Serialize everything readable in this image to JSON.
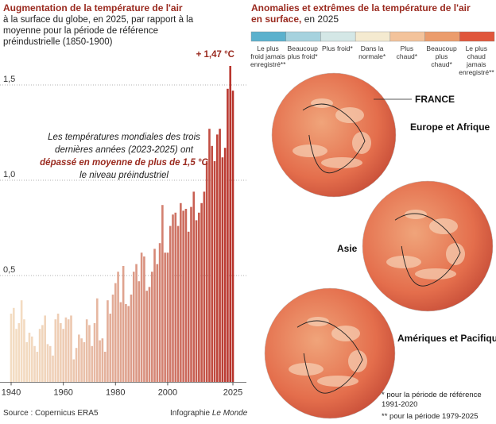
{
  "chart_data": {
    "type": "bar",
    "title": "Augmentation de la température de l'air",
    "subtitle": "à la surface du globe, en 2025, par rapport à la moyenne pour la période de référence préindustrielle (1850-1900)",
    "x": [
      1940,
      1941,
      1942,
      1943,
      1944,
      1945,
      1946,
      1947,
      1948,
      1949,
      1950,
      1951,
      1952,
      1953,
      1954,
      1955,
      1956,
      1957,
      1958,
      1959,
      1960,
      1961,
      1962,
      1963,
      1964,
      1965,
      1966,
      1967,
      1968,
      1969,
      1970,
      1971,
      1972,
      1973,
      1974,
      1975,
      1976,
      1977,
      1978,
      1979,
      1980,
      1981,
      1982,
      1983,
      1984,
      1985,
      1986,
      1987,
      1988,
      1989,
      1990,
      1991,
      1992,
      1993,
      1994,
      1995,
      1996,
      1997,
      1998,
      1999,
      2000,
      2001,
      2002,
      2003,
      2004,
      2005,
      2006,
      2007,
      2008,
      2009,
      2010,
      2011,
      2012,
      2013,
      2014,
      2015,
      2016,
      2017,
      2018,
      2019,
      2020,
      2021,
      2022,
      2023,
      2024,
      2025
    ],
    "values": [
      0.3,
      0.33,
      0.22,
      0.25,
      0.37,
      0.27,
      0.15,
      0.2,
      0.18,
      0.13,
      0.1,
      0.22,
      0.24,
      0.29,
      0.14,
      0.13,
      0.08,
      0.27,
      0.3,
      0.25,
      0.22,
      0.28,
      0.27,
      0.29,
      0.06,
      0.12,
      0.19,
      0.17,
      0.15,
      0.27,
      0.24,
      0.13,
      0.25,
      0.38,
      0.16,
      0.17,
      0.1,
      0.37,
      0.3,
      0.4,
      0.46,
      0.52,
      0.36,
      0.55,
      0.35,
      0.34,
      0.4,
      0.52,
      0.56,
      0.47,
      0.62,
      0.6,
      0.42,
      0.44,
      0.52,
      0.64,
      0.56,
      0.67,
      0.87,
      0.62,
      0.62,
      0.76,
      0.82,
      0.83,
      0.76,
      0.88,
      0.84,
      0.85,
      0.73,
      0.86,
      0.94,
      0.79,
      0.83,
      0.88,
      0.94,
      1.1,
      1.27,
      1.18,
      1.1,
      1.24,
      1.27,
      1.12,
      1.17,
      1.48,
      1.6,
      1.47
    ],
    "colors": [
      "#f3dcc2",
      "#b8322a"
    ],
    "xlim": [
      1939,
      2026
    ],
    "xticks": [
      1940,
      1960,
      1980,
      2000,
      2025
    ],
    "ylim": [
      -0.06,
      1.62
    ],
    "yticks": [
      {
        "value": 0.5,
        "label": "0,5"
      },
      {
        "value": 1.0,
        "label": "1,0"
      },
      {
        "value": 1.5,
        "label": "1,5"
      }
    ],
    "grid": true,
    "highlight": {
      "text": "+ 1,47 °C",
      "value": 1.47
    },
    "annotation": [
      "Les températures mondiales des trois",
      "dernières années (2023-2025) ont",
      "dépassé en moyenne de plus de 1,5 °C",
      "le niveau préindustriel"
    ],
    "source": "Source : Copernicus ERA5",
    "credit": "Infographie",
    "credit_brand": "Le Monde"
  },
  "map_panel": {
    "title": "Anomalies et extrêmes de la température de l'air en surface,",
    "title_suffix": "en 2025",
    "legend": [
      {
        "label": "Le plus froid jamais enregistré**",
        "color": "#5bb1cd"
      },
      {
        "label": "Beaucoup plus froid*",
        "color": "#a6d2de"
      },
      {
        "label": "Plus froid*",
        "color": "#d4e7e6"
      },
      {
        "label": "Dans la normale*",
        "color": "#f4ead0"
      },
      {
        "label": "Plus chaud*",
        "color": "#f3c39b"
      },
      {
        "label": "Beaucoup plus chaud*",
        "color": "#eb9c6c"
      },
      {
        "label": "Le plus chaud jamais enregistré**",
        "color": "#e0563b"
      }
    ],
    "globes": [
      {
        "label": "Europe et Afrique"
      },
      {
        "label": "Asie"
      },
      {
        "label": "Amériques et Pacifique"
      }
    ],
    "france": "FRANCE",
    "footnotes": [
      "* pour la période de référence 1991-2020",
      "** pour la période 1979-2025"
    ]
  }
}
